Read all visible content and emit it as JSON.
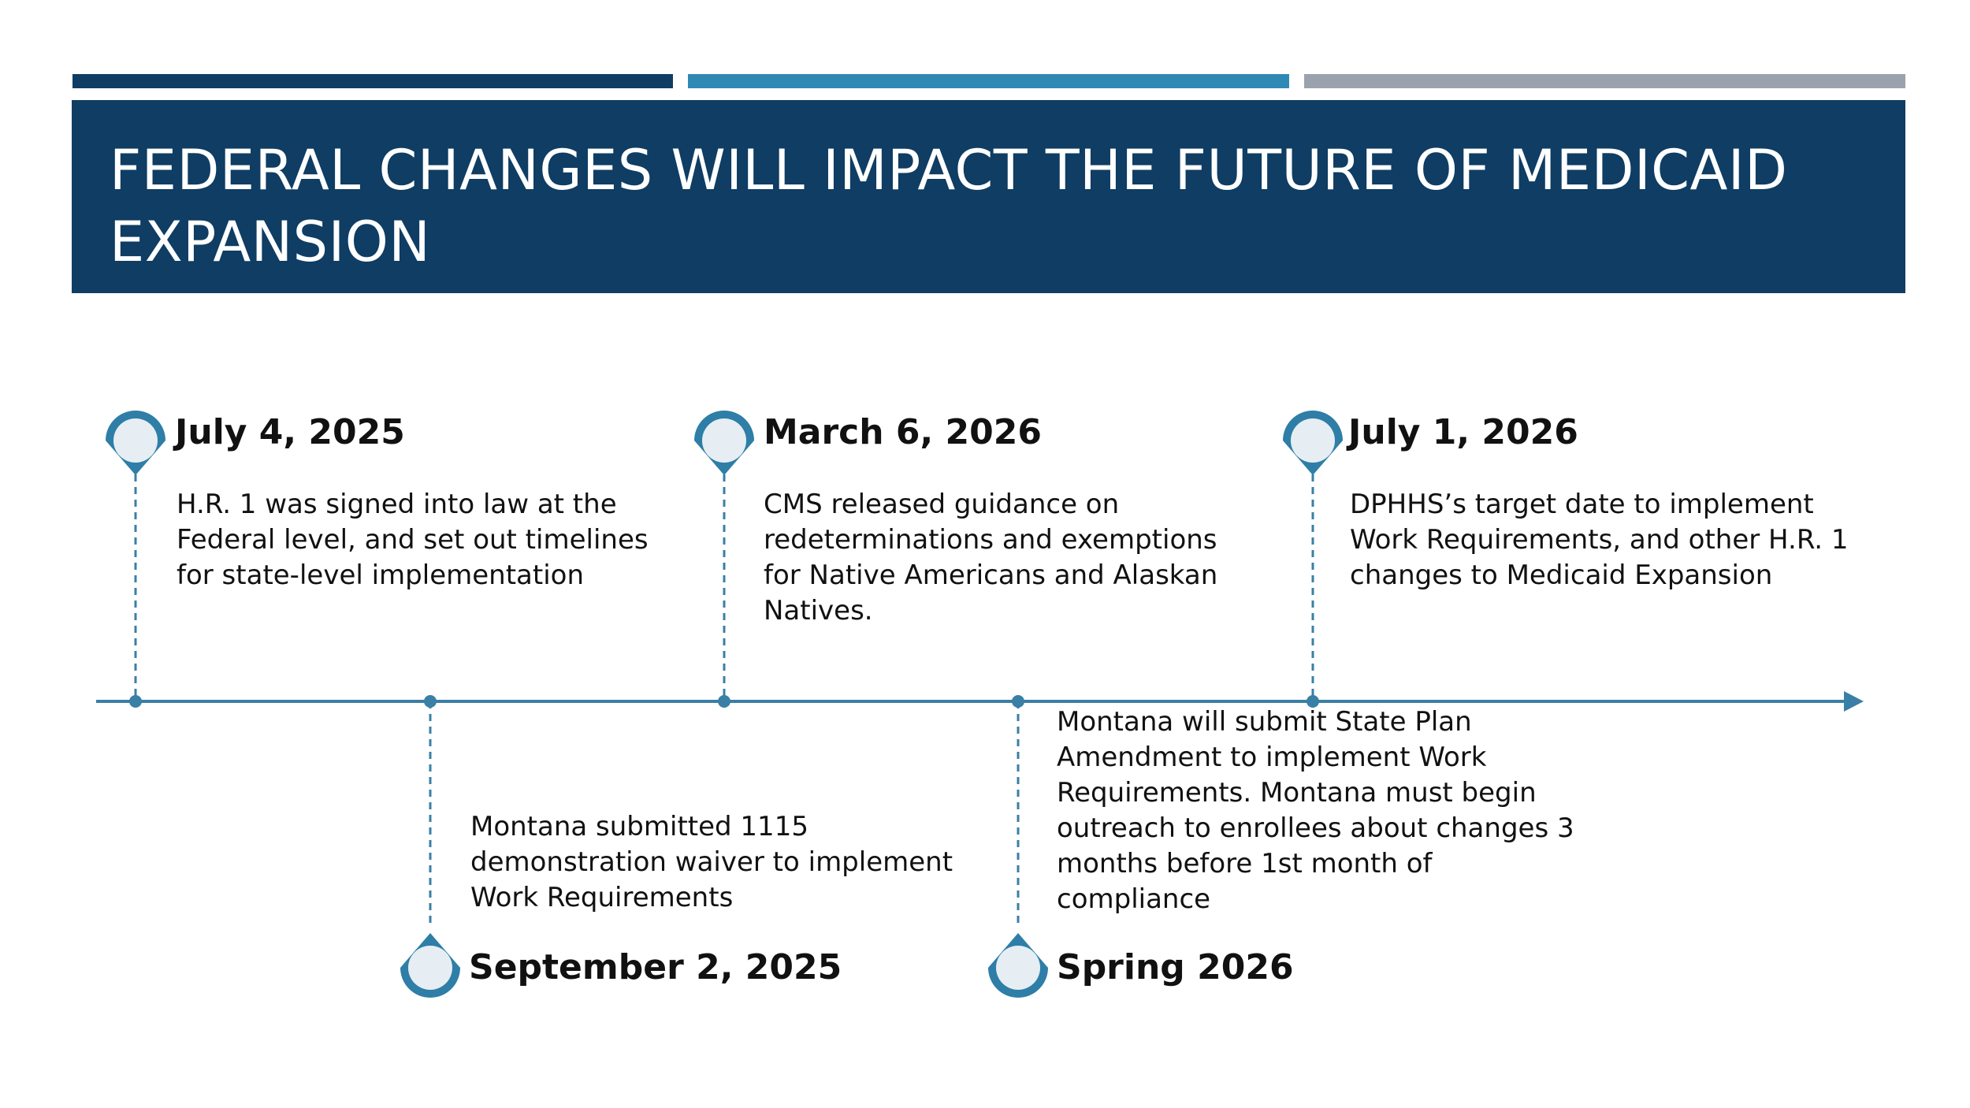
{
  "header": {
    "title": "FEDERAL CHANGES WILL IMPACT THE FUTURE OF MEDICAID EXPANSION",
    "colors": {
      "dark_blue": "#0f3d63",
      "teal": "#2e8ab5",
      "gray": "#9aa3ad"
    }
  },
  "timeline": {
    "line_color": "#3a7fa5",
    "events": [
      {
        "date": "July 4, 2025",
        "text": "H.R. 1 was signed into law at the Federal level, and set out timelines for state-level implementation"
      },
      {
        "date": "September 2,  2025",
        "text": "Montana submitted 1115 demonstration waiver to implement Work Requirements"
      },
      {
        "date": "March 6, 2026",
        "text": "CMS released guidance on redeterminations and exemptions for Native Americans and Alaskan Natives."
      },
      {
        "date": "Spring 2026",
        "text": "Montana will submit State Plan Amendment to implement Work Requirements. Montana must begin outreach to enrollees about changes 3 months before 1st month of compliance"
      },
      {
        "date": "July 1,  2026",
        "text": "DPHHS’s target date to implement Work Requirements, and other H.R. 1 changes to Medicaid Expansion"
      }
    ]
  }
}
